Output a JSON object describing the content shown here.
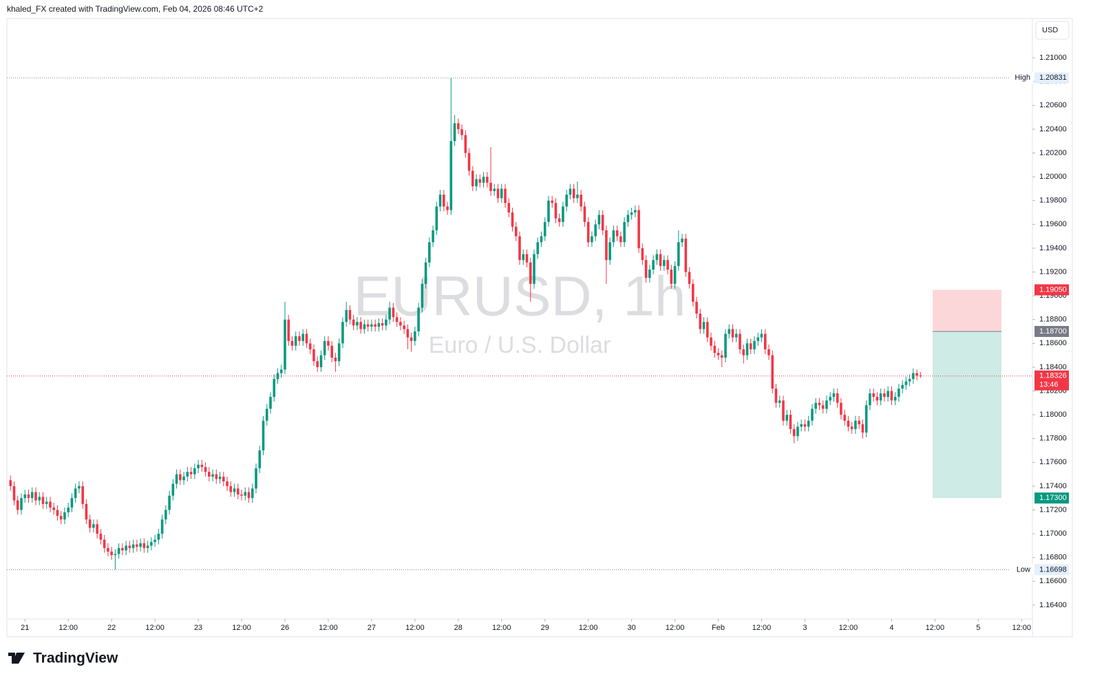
{
  "header": {
    "text": "khaled_FX created with TradingView.com, Feb 04, 2026 08:46 UTC+2"
  },
  "footer": {
    "logo": "TradingView"
  },
  "chart_data": {
    "type": "candlestick",
    "title": "EURUSD, 1h",
    "subtitle": "Euro / U.S. Dollar",
    "currency": "USD",
    "up_color": "#089981",
    "down_color": "#f23645",
    "grid": false,
    "open": [
      1.1745,
      1.174,
      1.1728,
      1.172,
      1.173,
      1.1733,
      1.173,
      1.1735,
      1.1728,
      1.1731,
      1.1725,
      1.1727,
      1.1722,
      1.172,
      1.1715,
      1.1712,
      1.1718,
      1.1722,
      1.173,
      1.1738,
      1.174,
      1.1725,
      1.1712,
      1.1705,
      1.1708,
      1.17,
      1.1695,
      1.1688,
      1.1685,
      1.1682,
      1.1683,
      1.1688,
      1.1686,
      1.169,
      1.1688,
      1.1691,
      1.1689,
      1.1692,
      1.1688,
      1.169,
      1.1693,
      1.1695,
      1.17,
      1.1712,
      1.172,
      1.1732,
      1.1742,
      1.175,
      1.1745,
      1.1748,
      1.1752,
      1.175,
      1.1755,
      1.1758,
      1.1756,
      1.1752,
      1.1748,
      1.175,
      1.1746,
      1.1748,
      1.1744,
      1.174,
      1.1735,
      1.1738,
      1.1733,
      1.1732,
      1.1735,
      1.173,
      1.1738,
      1.1755,
      1.177,
      1.1795,
      1.1805,
      1.1815,
      1.183,
      1.1835,
      1.1838,
      1.188,
      1.1862,
      1.1858,
      1.1866,
      1.1862,
      1.1868,
      1.186,
      1.1855,
      1.1845,
      1.184,
      1.185,
      1.1862,
      1.1858,
      1.1848,
      1.1845,
      1.186,
      1.1878,
      1.1888,
      1.188,
      1.1875,
      1.1878,
      1.1872,
      1.1876,
      1.1874,
      1.1876,
      1.1874,
      1.1877,
      1.1875,
      1.188,
      1.189,
      1.1882,
      1.1878,
      1.1875,
      1.1872,
      1.1865,
      1.1862,
      1.187,
      1.189,
      1.191,
      1.1928,
      1.1945,
      1.1955,
      1.1975,
      1.1985,
      1.1975,
      1.1972,
      1.203,
      1.2045,
      1.204,
      1.2035,
      1.202,
      1.2005,
      1.1992,
      1.1998,
      1.1995,
      1.2,
      1.1995,
      1.1988,
      1.199,
      1.1982,
      1.199,
      1.1978,
      1.197,
      1.1958,
      1.195,
      1.193,
      1.1935,
      1.1928,
      1.191,
      1.1935,
      1.1945,
      1.195,
      1.1962,
      1.198,
      1.1978,
      1.1965,
      1.1962,
      1.1975,
      1.1985,
      1.199,
      1.1982,
      1.1985,
      1.1975,
      1.1962,
      1.1945,
      1.195,
      1.196,
      1.1968,
      1.1955,
      1.193,
      1.1945,
      1.1955,
      1.195,
      1.1945,
      1.1962,
      1.1968,
      1.197,
      1.1972,
      1.194,
      1.193,
      1.1915,
      1.1922,
      1.193,
      1.1935,
      1.1925,
      1.193,
      1.1922,
      1.191,
      1.1925,
      1.1945,
      1.1948,
      1.192,
      1.191,
      1.1895,
      1.1885,
      1.1872,
      1.1878,
      1.1865,
      1.1858,
      1.1852,
      1.185,
      1.1848,
      1.1868,
      1.1872,
      1.1865,
      1.1868,
      1.1855,
      1.185,
      1.186,
      1.1855,
      1.1862,
      1.1865,
      1.1868,
      1.1855,
      1.185,
      1.1822,
      1.181,
      1.1812,
      1.1795,
      1.18,
      1.1788,
      1.1782,
      1.179,
      1.1792,
      1.179,
      1.1795,
      1.1805,
      1.181,
      1.1808,
      1.1805,
      1.1812,
      1.1815,
      1.1818,
      1.181,
      1.18,
      1.1795,
      1.179,
      1.1788,
      1.1795,
      1.1792,
      1.1785,
      1.1808,
      1.1818,
      1.1815,
      1.1812,
      1.1818,
      1.1815,
      1.182,
      1.1812,
      1.1815,
      1.1822,
      1.1825,
      1.1828,
      1.183,
      1.1835,
      1.1833
    ],
    "high": [
      1.1749,
      1.1744,
      1.1732,
      1.1734,
      1.1737,
      1.1737,
      1.1739,
      1.1739,
      1.1735,
      1.1735,
      1.1731,
      1.1731,
      1.1726,
      1.1724,
      1.1719,
      1.1722,
      1.1726,
      1.1734,
      1.1742,
      1.1744,
      1.1744,
      1.1729,
      1.1716,
      1.1712,
      1.1712,
      1.1704,
      1.1699,
      1.1692,
      1.1689,
      1.1687,
      1.1692,
      1.1692,
      1.1694,
      1.1694,
      1.1695,
      1.1695,
      1.1696,
      1.1696,
      1.1694,
      1.1697,
      1.1699,
      1.1704,
      1.1716,
      1.1724,
      1.1736,
      1.1746,
      1.1754,
      1.1754,
      1.1752,
      1.1756,
      1.1756,
      1.1759,
      1.1762,
      1.1762,
      1.176,
      1.1756,
      1.1754,
      1.1754,
      1.1752,
      1.1752,
      1.1748,
      1.1744,
      1.1742,
      1.1742,
      1.1737,
      1.1739,
      1.1739,
      1.1742,
      1.1759,
      1.1774,
      1.1799,
      1.1809,
      1.1819,
      1.1834,
      1.1839,
      1.1842,
      1.1895,
      1.1884,
      1.1866,
      1.187,
      1.187,
      1.1872,
      1.1872,
      1.1864,
      1.1859,
      1.1849,
      1.1854,
      1.1866,
      1.1866,
      1.1862,
      1.1852,
      1.1864,
      1.1882,
      1.1895,
      1.1892,
      1.1884,
      1.1882,
      1.1882,
      1.188,
      1.188,
      1.188,
      1.188,
      1.1881,
      1.1881,
      1.1884,
      1.1895,
      1.1894,
      1.1886,
      1.1882,
      1.1879,
      1.1876,
      1.1869,
      1.1874,
      1.1894,
      1.1914,
      1.1932,
      1.1949,
      1.1959,
      1.1979,
      1.1989,
      1.1989,
      1.1979,
      1.20831,
      1.2052,
      1.2049,
      1.2044,
      1.2039,
      1.2024,
      1.2009,
      1.2002,
      1.2002,
      1.2004,
      1.2004,
      1.2025,
      1.1994,
      1.1994,
      1.1994,
      1.1994,
      1.1982,
      1.1974,
      1.1962,
      1.1954,
      1.1939,
      1.1939,
      1.1932,
      1.1939,
      1.1949,
      1.1954,
      1.1966,
      1.1984,
      1.1984,
      1.1982,
      1.1969,
      1.1979,
      1.1989,
      1.1994,
      1.1994,
      1.1996,
      1.1989,
      1.1979,
      1.1966,
      1.1954,
      1.1964,
      1.1972,
      1.1972,
      1.1959,
      1.1949,
      1.1959,
      1.1959,
      1.1954,
      1.1966,
      1.1972,
      1.1974,
      1.1976,
      1.1976,
      1.1944,
      1.1934,
      1.1926,
      1.1934,
      1.1939,
      1.1939,
      1.1934,
      1.1934,
      1.1926,
      1.1929,
      1.1955,
      1.1952,
      1.1952,
      1.1924,
      1.1914,
      1.1899,
      1.1889,
      1.1882,
      1.1882,
      1.1869,
      1.1862,
      1.1856,
      1.1854,
      1.1872,
      1.1876,
      1.1876,
      1.1872,
      1.1872,
      1.1859,
      1.1864,
      1.1864,
      1.1866,
      1.1869,
      1.1872,
      1.1872,
      1.1859,
      1.1854,
      1.1826,
      1.1816,
      1.1816,
      1.1804,
      1.1804,
      1.1792,
      1.1794,
      1.1796,
      1.1796,
      1.1799,
      1.1809,
      1.1814,
      1.1814,
      1.1812,
      1.1816,
      1.1819,
      1.1822,
      1.1822,
      1.1814,
      1.1804,
      1.1799,
      1.1794,
      1.1799,
      1.1799,
      1.1796,
      1.1812,
      1.1822,
      1.1822,
      1.1819,
      1.1822,
      1.1822,
      1.1824,
      1.1824,
      1.1819,
      1.1826,
      1.1829,
      1.1832,
      1.1834,
      1.1839,
      1.1838,
      1.1836
    ],
    "low": [
      1.1736,
      1.1724,
      1.1716,
      1.1716,
      1.1726,
      1.1726,
      1.1726,
      1.1724,
      1.1724,
      1.1721,
      1.1721,
      1.1718,
      1.1716,
      1.1711,
      1.1708,
      1.1708,
      1.1714,
      1.1718,
      1.1726,
      1.1734,
      1.1721,
      1.1708,
      1.1701,
      1.1701,
      1.1696,
      1.1691,
      1.1684,
      1.1681,
      1.1678,
      1.16698,
      1.1679,
      1.1682,
      1.1682,
      1.1684,
      1.1684,
      1.1685,
      1.1685,
      1.1684,
      1.1684,
      1.1686,
      1.1689,
      1.1691,
      1.1696,
      1.1708,
      1.1716,
      1.1728,
      1.1738,
      1.1741,
      1.1741,
      1.1744,
      1.1746,
      1.1746,
      1.1751,
      1.1752,
      1.1748,
      1.1744,
      1.1744,
      1.1742,
      1.1742,
      1.174,
      1.1736,
      1.1731,
      1.1731,
      1.1729,
      1.1728,
      1.1728,
      1.1726,
      1.1726,
      1.1734,
      1.1751,
      1.1766,
      1.1791,
      1.1801,
      1.1811,
      1.1826,
      1.1831,
      1.1834,
      1.1858,
      1.1854,
      1.1854,
      1.1858,
      1.1858,
      1.1856,
      1.1851,
      1.1841,
      1.1836,
      1.1836,
      1.1846,
      1.1854,
      1.1844,
      1.1836,
      1.1841,
      1.1856,
      1.1874,
      1.1876,
      1.1871,
      1.1871,
      1.1868,
      1.1868,
      1.187,
      1.187,
      1.187,
      1.187,
      1.1871,
      1.1871,
      1.1876,
      1.1878,
      1.1874,
      1.1871,
      1.1868,
      1.1855,
      1.1853,
      1.1858,
      1.1866,
      1.1886,
      1.1906,
      1.1924,
      1.1941,
      1.1951,
      1.1971,
      1.1971,
      1.1968,
      1.1968,
      1.2026,
      1.2036,
      1.2031,
      1.2016,
      1.2001,
      1.1988,
      1.1988,
      1.1991,
      1.1991,
      1.1991,
      1.1984,
      1.1984,
      1.1978,
      1.1978,
      1.1974,
      1.1966,
      1.1954,
      1.1946,
      1.1926,
      1.1926,
      1.1924,
      1.1895,
      1.1906,
      1.1931,
      1.1941,
      1.1946,
      1.1958,
      1.1974,
      1.1961,
      1.1958,
      1.1958,
      1.1971,
      1.1981,
      1.1978,
      1.1978,
      1.1971,
      1.1958,
      1.1941,
      1.1941,
      1.1946,
      1.1956,
      1.1951,
      1.191,
      1.1926,
      1.1941,
      1.1946,
      1.1941,
      1.1941,
      1.1958,
      1.1964,
      1.1966,
      1.1936,
      1.1926,
      1.1911,
      1.1911,
      1.1918,
      1.1926,
      1.1921,
      1.1921,
      1.1918,
      1.1906,
      1.1906,
      1.1921,
      1.1941,
      1.1916,
      1.1906,
      1.1891,
      1.1881,
      1.1868,
      1.1868,
      1.1861,
      1.1854,
      1.1848,
      1.1846,
      1.184,
      1.1844,
      1.1864,
      1.1861,
      1.1861,
      1.1851,
      1.1843,
      1.1846,
      1.1851,
      1.1851,
      1.1858,
      1.1861,
      1.1851,
      1.1846,
      1.1818,
      1.1806,
      1.1806,
      1.1791,
      1.1791,
      1.1784,
      1.1776,
      1.1778,
      1.1786,
      1.1786,
      1.1786,
      1.1791,
      1.1801,
      1.1804,
      1.1801,
      1.1801,
      1.1808,
      1.1811,
      1.1806,
      1.1796,
      1.1791,
      1.1786,
      1.1784,
      1.1784,
      1.1788,
      1.178,
      1.1781,
      1.1804,
      1.1811,
      1.1808,
      1.1808,
      1.1811,
      1.1811,
      1.1808,
      1.1808,
      1.1811,
      1.1818,
      1.1821,
      1.1824,
      1.1826,
      1.1829,
      1.1831
    ],
    "close": [
      1.174,
      1.1728,
      1.172,
      1.173,
      1.1733,
      1.173,
      1.1735,
      1.1728,
      1.1731,
      1.1725,
      1.1727,
      1.1722,
      1.172,
      1.1715,
      1.1712,
      1.1718,
      1.1722,
      1.173,
      1.1738,
      1.174,
      1.1725,
      1.1712,
      1.1705,
      1.1708,
      1.17,
      1.1695,
      1.1688,
      1.1685,
      1.1682,
      1.1683,
      1.1688,
      1.1686,
      1.169,
      1.1688,
      1.1691,
      1.1689,
      1.1692,
      1.1688,
      1.169,
      1.1693,
      1.1695,
      1.17,
      1.1712,
      1.172,
      1.1732,
      1.1742,
      1.175,
      1.1745,
      1.1748,
      1.1752,
      1.175,
      1.1755,
      1.1758,
      1.1756,
      1.1752,
      1.1748,
      1.175,
      1.1746,
      1.1748,
      1.1744,
      1.174,
      1.1735,
      1.1738,
      1.1733,
      1.1732,
      1.1735,
      1.173,
      1.1738,
      1.1755,
      1.177,
      1.1795,
      1.1805,
      1.1815,
      1.183,
      1.1835,
      1.1838,
      1.188,
      1.1862,
      1.1858,
      1.1866,
      1.1862,
      1.1868,
      1.186,
      1.1855,
      1.1845,
      1.184,
      1.185,
      1.1862,
      1.1858,
      1.1848,
      1.1845,
      1.186,
      1.1878,
      1.1888,
      1.188,
      1.1875,
      1.1878,
      1.1872,
      1.1876,
      1.1874,
      1.1876,
      1.1874,
      1.1877,
      1.1875,
      1.188,
      1.189,
      1.1882,
      1.1878,
      1.1875,
      1.1872,
      1.1865,
      1.1862,
      1.187,
      1.189,
      1.191,
      1.1928,
      1.1945,
      1.1955,
      1.1975,
      1.1985,
      1.1975,
      1.1972,
      1.203,
      1.2045,
      1.204,
      1.2035,
      1.202,
      1.2005,
      1.1992,
      1.1998,
      1.1995,
      1.2,
      1.1995,
      1.1988,
      1.199,
      1.1982,
      1.199,
      1.1978,
      1.197,
      1.1958,
      1.195,
      1.193,
      1.1935,
      1.1928,
      1.191,
      1.1935,
      1.1945,
      1.195,
      1.1962,
      1.198,
      1.1978,
      1.1965,
      1.1962,
      1.1975,
      1.1985,
      1.199,
      1.1982,
      1.1985,
      1.1975,
      1.1962,
      1.1945,
      1.195,
      1.196,
      1.1968,
      1.1955,
      1.193,
      1.1945,
      1.1955,
      1.195,
      1.1945,
      1.1962,
      1.1968,
      1.197,
      1.1972,
      1.194,
      1.193,
      1.1915,
      1.1922,
      1.193,
      1.1935,
      1.1925,
      1.193,
      1.1922,
      1.191,
      1.1925,
      1.1945,
      1.1948,
      1.192,
      1.191,
      1.1895,
      1.1885,
      1.1872,
      1.1878,
      1.1865,
      1.1858,
      1.1852,
      1.185,
      1.1848,
      1.1868,
      1.1872,
      1.1865,
      1.1868,
      1.1855,
      1.185,
      1.186,
      1.1855,
      1.1862,
      1.1865,
      1.1868,
      1.1855,
      1.185,
      1.1822,
      1.181,
      1.1812,
      1.1795,
      1.18,
      1.1788,
      1.1782,
      1.179,
      1.1792,
      1.179,
      1.1795,
      1.1805,
      1.181,
      1.1808,
      1.1805,
      1.1812,
      1.1815,
      1.1818,
      1.181,
      1.18,
      1.1795,
      1.179,
      1.1788,
      1.1795,
      1.1792,
      1.1785,
      1.1808,
      1.1818,
      1.1815,
      1.1812,
      1.1818,
      1.1815,
      1.182,
      1.1812,
      1.1815,
      1.1822,
      1.1825,
      1.1828,
      1.183,
      1.1835,
      1.1833,
      1.18326
    ],
    "xlim": [
      -1,
      283
    ],
    "xticks": [
      {
        "value": 4,
        "label": "21"
      },
      {
        "value": 16,
        "label": "12:00"
      },
      {
        "value": 28,
        "label": "22"
      },
      {
        "value": 40,
        "label": "12:00"
      },
      {
        "value": 52,
        "label": "23"
      },
      {
        "value": 64,
        "label": "12:00"
      },
      {
        "value": 76,
        "label": "26"
      },
      {
        "value": 88,
        "label": "12:00"
      },
      {
        "value": 100,
        "label": "27"
      },
      {
        "value": 112,
        "label": "12:00"
      },
      {
        "value": 124,
        "label": "28"
      },
      {
        "value": 136,
        "label": "12:00"
      },
      {
        "value": 148,
        "label": "29"
      },
      {
        "value": 160,
        "label": "12:00"
      },
      {
        "value": 172,
        "label": "30"
      },
      {
        "value": 184,
        "label": "12:00"
      },
      {
        "value": 196,
        "label": "Feb"
      },
      {
        "value": 208,
        "label": "12:00"
      },
      {
        "value": 220,
        "label": "3"
      },
      {
        "value": 232,
        "label": "12:00"
      },
      {
        "value": 244,
        "label": "4"
      },
      {
        "value": 256,
        "label": "12:00"
      },
      {
        "value": 268,
        "label": "5"
      },
      {
        "value": 280,
        "label": "12:00"
      }
    ],
    "ylim": [
      1.16284,
      1.21324
    ],
    "yticks": [
      {
        "value": 1.164,
        "label": "1.16400"
      },
      {
        "value": 1.166,
        "label": "1.16600"
      },
      {
        "value": 1.168,
        "label": "1.16800"
      },
      {
        "value": 1.17,
        "label": "1.17000"
      },
      {
        "value": 1.172,
        "label": "1.17200"
      },
      {
        "value": 1.174,
        "label": "1.17400"
      },
      {
        "value": 1.176,
        "label": "1.17600"
      },
      {
        "value": 1.178,
        "label": "1.17800"
      },
      {
        "value": 1.18,
        "label": "1.18000"
      },
      {
        "value": 1.182,
        "label": "1.18200"
      },
      {
        "value": 1.184,
        "label": "1.18400"
      },
      {
        "value": 1.186,
        "label": "1.18600"
      },
      {
        "value": 1.188,
        "label": "1.18800"
      },
      {
        "value": 1.19,
        "label": "1.19000"
      },
      {
        "value": 1.192,
        "label": "1.19200"
      },
      {
        "value": 1.194,
        "label": "1.19400"
      },
      {
        "value": 1.196,
        "label": "1.19600"
      },
      {
        "value": 1.198,
        "label": "1.19800"
      },
      {
        "value": 1.2,
        "label": "1.20000"
      },
      {
        "value": 1.202,
        "label": "1.20200"
      },
      {
        "value": 1.204,
        "label": "1.20400"
      },
      {
        "value": 1.206,
        "label": "1.20600"
      },
      {
        "value": 1.208,
        "label": "1.20800"
      },
      {
        "value": 1.21,
        "label": "1.21000"
      }
    ],
    "high_marker": {
      "label": "High",
      "value": 1.20831
    },
    "low_marker": {
      "label": "Low",
      "value": 1.16698
    },
    "last_price": {
      "value": 1.18326,
      "countdown": "13:46"
    },
    "position": {
      "stop": {
        "value": 1.1905,
        "label": "1.19050"
      },
      "entry": {
        "value": 1.187,
        "label": "1.18700"
      },
      "target": {
        "value": 1.173,
        "label": "1.17300"
      }
    }
  }
}
